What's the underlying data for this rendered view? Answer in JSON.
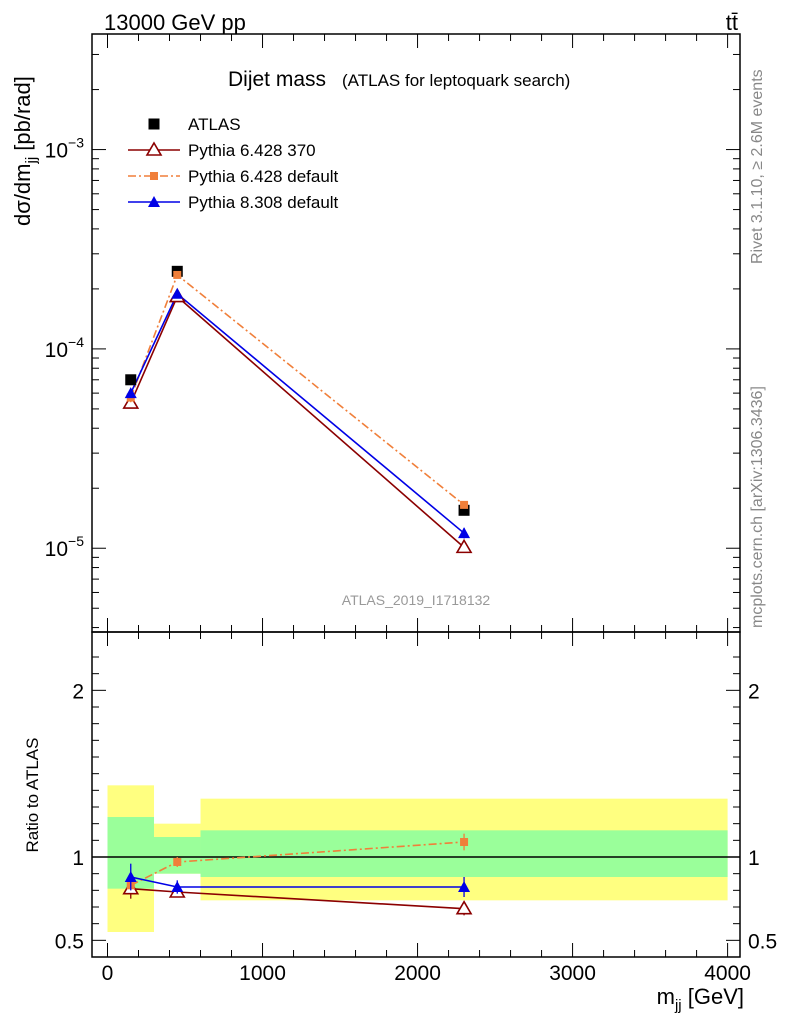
{
  "header": {
    "energy_label": "13000 GeV pp",
    "process_label": "tt̄"
  },
  "side": {
    "rivet_label": "Rivet 3.1.10, ≥ 2.6M events",
    "mcplots_label": "mcplots.cern.ch [arXiv:1306.3436]"
  },
  "chart_data": [
    {
      "type": "scatter",
      "title": "Dijet mass",
      "subtitle": "(ATLAS for leptoquark search)",
      "ylabel": "dσ/dm_jj [pb/rad]",
      "ylabel_main": "dσ/dm",
      "ylabel_sub": "jj",
      "ylabel_unit": " [pb/rad]",
      "watermark": "ATLAS_2019_I1718132",
      "yscale": "log",
      "ylim": [
        3.8e-06,
        0.0038
      ],
      "xlim": [
        -100,
        4080
      ],
      "yticks": [
        {
          "value": 1e-05,
          "base": "10",
          "exp": "−5"
        },
        {
          "value": 0.0001,
          "base": "10",
          "exp": "−4"
        },
        {
          "value": 0.001,
          "base": "10",
          "exp": "−3"
        }
      ],
      "legend_position": "top-left",
      "series": [
        {
          "name": "ATLAS",
          "color": "#000000",
          "marker": "square",
          "line": "none",
          "x": [
            150,
            450,
            2300
          ],
          "y": [
            7e-05,
            0.000245,
            1.55e-05
          ],
          "yerr": [
            3e-06,
            8e-06,
            9e-07
          ]
        },
        {
          "name": "Pythia 6.428 370",
          "color": "#8b0000",
          "marker": "open-triangle",
          "line": "solid",
          "x": [
            150,
            450,
            2300
          ],
          "y": [
            5.35e-05,
            0.000183,
            1.01e-05
          ],
          "yerr": [
            3e-06,
            6e-06,
            5e-07
          ]
        },
        {
          "name": "Pythia 6.428 default",
          "color": "#f07f3a",
          "marker": "square",
          "line": "dashdot",
          "x": [
            150,
            450,
            2300
          ],
          "y": [
            5.7e-05,
            0.000235,
            1.65e-05
          ],
          "yerr": [
            3e-06,
            7e-06,
            6e-07
          ]
        },
        {
          "name": "Pythia 8.308 default",
          "color": "#0000e6",
          "marker": "filled-triangle",
          "line": "solid",
          "x": [
            150,
            450,
            2300
          ],
          "y": [
            6e-05,
            0.000189,
            1.19e-05
          ],
          "yerr": [
            3e-06,
            7e-06,
            7e-07
          ]
        }
      ]
    },
    {
      "type": "scatter",
      "ylabel": "Ratio to ATLAS",
      "xlabel": "m_jj [GeV]",
      "xlabel_main": "m",
      "xlabel_sub": "jj",
      "xlabel_unit": " [GeV]",
      "xlim": [
        -100,
        4080
      ],
      "ylim": [
        0.4,
        2.35
      ],
      "yticks": [
        "0.5",
        "1",
        "2"
      ],
      "ytick_values": [
        0.5,
        1,
        2
      ],
      "xticks": [
        "0",
        "1000",
        "2000",
        "3000",
        "4000"
      ],
      "xtick_values": [
        0,
        1000,
        2000,
        3000,
        4000
      ],
      "reference_line": 1,
      "uncertainty_bands": [
        {
          "x0": 0,
          "x1": 300,
          "inner": [
            0.81,
            1.24
          ],
          "outer": [
            0.55,
            1.43
          ]
        },
        {
          "x0": 300,
          "x1": 600,
          "inner": [
            0.9,
            1.12
          ],
          "outer": [
            0.9,
            1.2
          ]
        },
        {
          "x0": 600,
          "x1": 4000,
          "inner": [
            0.88,
            1.16
          ],
          "outer": [
            0.74,
            1.35
          ]
        }
      ],
      "band_colors": {
        "inner": "#9aff9a",
        "outer": "#ffff80"
      },
      "series": [
        {
          "name": "Pythia 6.428 370",
          "color": "#8b0000",
          "marker": "open-triangle",
          "line": "solid",
          "x": [
            150,
            450,
            2300
          ],
          "y": [
            0.81,
            0.79,
            0.69
          ],
          "yerr": [
            0.06,
            0.03,
            0.04
          ]
        },
        {
          "name": "Pythia 6.428 default",
          "color": "#f07f3a",
          "marker": "square",
          "line": "dashdot",
          "x": [
            150,
            450,
            2300
          ],
          "y": [
            0.83,
            0.97,
            1.09
          ],
          "yerr": [
            0.03,
            0.03,
            0.05
          ]
        },
        {
          "name": "Pythia 8.308 default",
          "color": "#0000e6",
          "marker": "filled-triangle",
          "line": "solid",
          "x": [
            150,
            450,
            2300
          ],
          "y": [
            0.88,
            0.82,
            0.82
          ],
          "yerr": [
            0.08,
            0.04,
            0.06
          ]
        }
      ]
    }
  ]
}
